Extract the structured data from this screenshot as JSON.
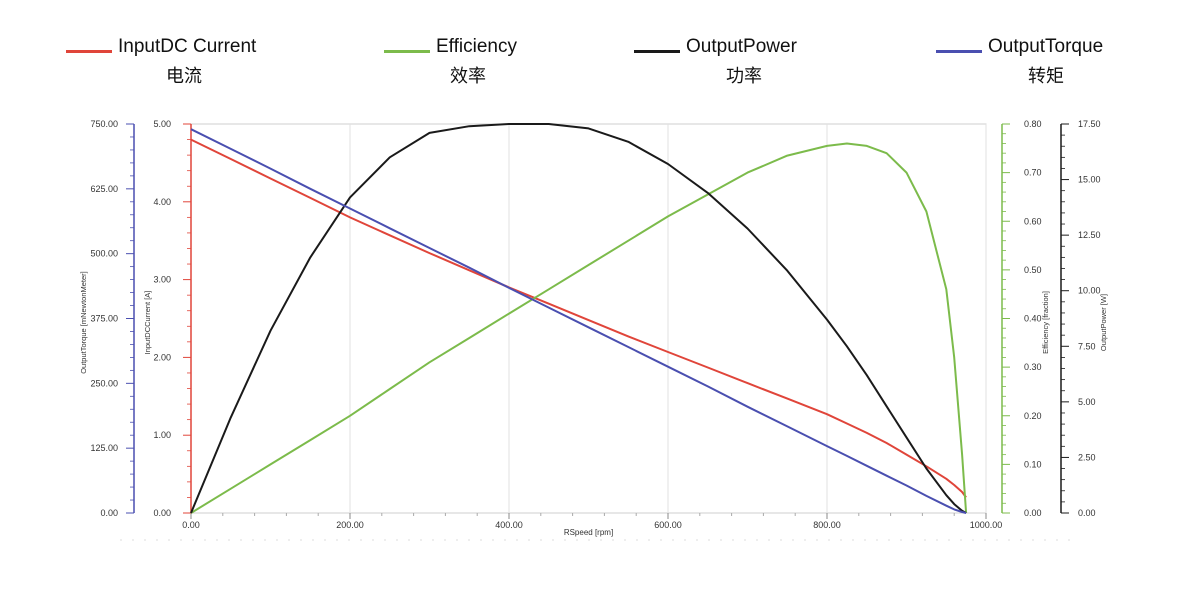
{
  "legend": [
    {
      "name": "InputDC Current",
      "cn": "电流",
      "color": "#e0453a"
    },
    {
      "name": "Efficiency",
      "cn": "效率",
      "color": "#7cbb4b"
    },
    {
      "name": "OutputPower",
      "cn": "功率",
      "color": "#1a1a1a"
    },
    {
      "name": "OutputTorque",
      "cn": "转矩",
      "color": "#4a4fb0"
    }
  ],
  "chart_data": {
    "type": "line",
    "x": [
      0,
      50,
      100,
      150,
      200,
      250,
      300,
      350,
      400,
      450,
      500,
      550,
      600,
      650,
      700,
      750,
      800,
      825,
      850,
      875,
      900,
      925,
      950,
      960,
      970,
      975
    ],
    "xlabel": "RSpeed [rpm]",
    "xlim": [
      0,
      1000
    ],
    "xticks": [
      "0.00",
      "200.00",
      "400.00",
      "600.00",
      "800.00",
      "1000.00"
    ],
    "axes": [
      {
        "id": "torque",
        "side": "left",
        "label": "OutputTorque [mNewtonMeter]",
        "range": [
          0,
          750
        ],
        "ticks": [
          "0.00",
          "125.00",
          "250.00",
          "375.00",
          "500.00",
          "625.00",
          "750.00"
        ],
        "color": "#4a4fb0"
      },
      {
        "id": "current",
        "side": "left",
        "label": "InputDCCurrent [A]",
        "range": [
          0,
          5
        ],
        "ticks": [
          "0.00",
          "1.00",
          "2.00",
          "3.00",
          "4.00",
          "5.00"
        ],
        "color": "#e0453a"
      },
      {
        "id": "efficiency",
        "side": "right",
        "label": "Efficiency [fraction]",
        "range": [
          0,
          0.8
        ],
        "ticks": [
          "0.00",
          "0.10",
          "0.20",
          "0.30",
          "0.40",
          "0.50",
          "0.60",
          "0.70",
          "0.80"
        ],
        "color": "#7cbb4b"
      },
      {
        "id": "power",
        "side": "right",
        "label": "OutputPower [W]",
        "range": [
          0,
          17.5
        ],
        "ticks": [
          "0.00",
          "2.50",
          "5.00",
          "7.50",
          "10.00",
          "12.50",
          "15.00",
          "17.50"
        ],
        "color": "#1a1a1a"
      }
    ],
    "series": [
      {
        "name": "InputDC Current",
        "axis": "current",
        "color": "#e0453a",
        "values": [
          4.8,
          4.55,
          4.3,
          4.05,
          3.8,
          3.57,
          3.34,
          3.12,
          2.9,
          2.69,
          2.48,
          2.27,
          2.07,
          1.87,
          1.67,
          1.47,
          1.27,
          1.15,
          1.03,
          0.9,
          0.75,
          0.6,
          0.44,
          0.36,
          0.27,
          0.2
        ]
      },
      {
        "name": "Efficiency",
        "axis": "efficiency",
        "color": "#7cbb4b",
        "values": [
          0.0,
          0.05,
          0.1,
          0.15,
          0.2,
          0.255,
          0.31,
          0.36,
          0.41,
          0.46,
          0.51,
          0.56,
          0.61,
          0.655,
          0.7,
          0.735,
          0.755,
          0.76,
          0.755,
          0.74,
          0.7,
          0.62,
          0.46,
          0.32,
          0.12,
          0.0
        ]
      },
      {
        "name": "OutputPower",
        "axis": "power",
        "color": "#1a1a1a",
        "values": [
          0.0,
          4.3,
          8.2,
          11.5,
          14.2,
          16.0,
          17.1,
          17.4,
          17.5,
          17.5,
          17.3,
          16.7,
          15.7,
          14.4,
          12.8,
          10.9,
          8.7,
          7.5,
          6.2,
          4.8,
          3.4,
          2.0,
          0.8,
          0.4,
          0.1,
          0.0
        ]
      },
      {
        "name": "OutputTorque",
        "axis": "torque",
        "color": "#4a4fb0",
        "values": [
          740,
          702,
          664,
          625,
          587,
          549,
          511,
          473,
          434,
          396,
          358,
          320,
          282,
          244,
          205,
          167,
          129,
          110,
          91,
          72,
          53,
          33,
          14,
          7,
          2,
          0
        ]
      }
    ]
  }
}
